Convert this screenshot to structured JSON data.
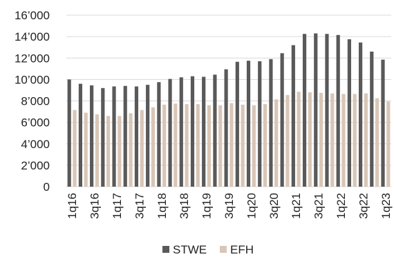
{
  "colors": {
    "stwe": "#595959",
    "efh": "#d9c6b6",
    "grid": "#d9d9d9",
    "text": "#222222"
  },
  "chart_data": {
    "type": "bar",
    "title": "",
    "xlabel": "",
    "ylabel": "",
    "ylim": [
      0,
      16000
    ],
    "yticks": [
      0,
      2000,
      4000,
      6000,
      8000,
      10000,
      12000,
      14000,
      16000
    ],
    "ytick_labels": [
      "0",
      "2’000",
      "4’000",
      "6’000",
      "8’000",
      "10’000",
      "12’000",
      "14’000",
      "16’000"
    ],
    "grid": "horizontal",
    "legend_position": "bottom-center",
    "categories": [
      "1q16",
      "2q16",
      "3q16",
      "4q16",
      "1q17",
      "2q17",
      "3q17",
      "4q17",
      "1q18",
      "2q18",
      "3q18",
      "4q18",
      "1q19",
      "2q19",
      "3q19",
      "4q19",
      "1q20",
      "2q20",
      "3q20",
      "4q20",
      "1q21",
      "2q21",
      "3q21",
      "4q21",
      "1q22",
      "2q22",
      "3q22",
      "4q22",
      "1q23"
    ],
    "xtick_labels": [
      "1q16",
      "3q16",
      "1q17",
      "3q17",
      "1q18",
      "3q18",
      "1q19",
      "3q19",
      "1q20",
      "3q20",
      "1q21",
      "3q21",
      "1q22",
      "3q22",
      "1q23"
    ],
    "series": [
      {
        "name": "STWE",
        "values": [
          10000,
          9600,
          9450,
          9200,
          9350,
          9400,
          9350,
          9500,
          9750,
          10050,
          10200,
          10300,
          10250,
          10450,
          10950,
          11650,
          11750,
          11700,
          11900,
          12450,
          13200,
          14250,
          14300,
          14250,
          14150,
          13750,
          13450,
          12600,
          11850
        ]
      },
      {
        "name": "EFH",
        "values": [
          7150,
          6900,
          6750,
          6600,
          6600,
          6850,
          7150,
          7400,
          7650,
          7750,
          7700,
          7700,
          7600,
          7600,
          7800,
          7650,
          7600,
          7700,
          8150,
          8550,
          8850,
          8800,
          8750,
          8700,
          8650,
          8650,
          8700,
          8250,
          7950
        ]
      }
    ]
  }
}
